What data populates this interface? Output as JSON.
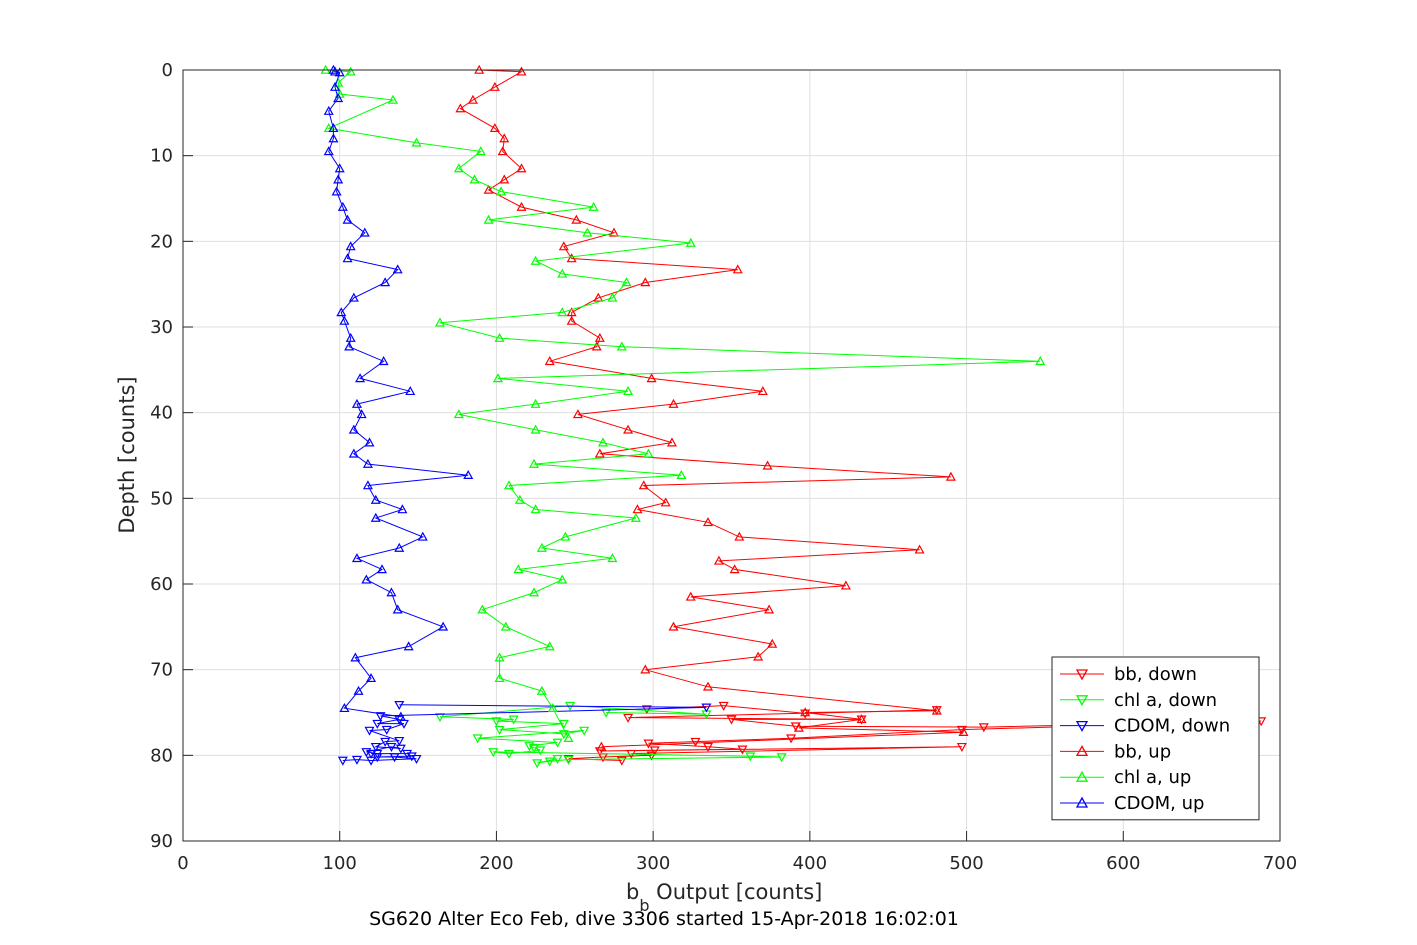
{
  "chart_data": {
    "type": "line",
    "title": "",
    "xlabel": "b",
    "xlabel_sub": "b",
    "xlabel_rest": " Output [counts]",
    "ylabel": "Depth [counts]",
    "caption": "SG620 Alter Eco Feb, dive 3306 started 15-Apr-2018 16:02:01",
    "xlim": [
      0,
      700
    ],
    "ylim": [
      0,
      90
    ],
    "y_reversed": true,
    "grid": true,
    "legend_position": "bottom-right",
    "xticks": [
      "0",
      "100",
      "200",
      "300",
      "400",
      "500",
      "600",
      "700"
    ],
    "yticks": [
      "0",
      "10",
      "20",
      "30",
      "40",
      "50",
      "60",
      "70",
      "80",
      "90"
    ],
    "series": [
      {
        "name": "bb, down",
        "color": "#ff0000",
        "marker": "triangle-down",
        "points": [
          [
            296,
            74.6
          ],
          [
            345,
            74.2
          ],
          [
            397,
            75.1
          ],
          [
            481,
            74.7
          ],
          [
            284,
            75.6
          ],
          [
            433,
            75.8
          ],
          [
            350,
            75.8
          ],
          [
            391,
            76.6
          ],
          [
            511,
            76.7
          ],
          [
            688,
            76
          ],
          [
            497,
            77
          ],
          [
            388,
            78
          ],
          [
            327,
            78.4
          ],
          [
            297,
            78.6
          ],
          [
            335,
            79
          ],
          [
            357,
            79.3
          ],
          [
            301,
            79.4
          ],
          [
            266,
            79.5
          ],
          [
            497,
            79
          ],
          [
            286,
            79.8
          ],
          [
            299,
            80
          ],
          [
            268,
            80.2
          ],
          [
            246,
            80.4
          ],
          [
            280,
            80.6
          ]
        ]
      },
      {
        "name": "chl a, down",
        "color": "#00ff00",
        "marker": "triangle-down",
        "points": [
          [
            270,
            75
          ],
          [
            334,
            75.2
          ],
          [
            247,
            74.2
          ],
          [
            164,
            75.5
          ],
          [
            211,
            75.8
          ],
          [
            200,
            76
          ],
          [
            243,
            76.3
          ],
          [
            202,
            77
          ],
          [
            243,
            77.5
          ],
          [
            256,
            77.1
          ],
          [
            188,
            78
          ],
          [
            239,
            78.5
          ],
          [
            221,
            78.9
          ],
          [
            224,
            79.1
          ],
          [
            228,
            79.4
          ],
          [
            208,
            79.8
          ],
          [
            198,
            79.6
          ],
          [
            362,
            80.1
          ],
          [
            382,
            80.2
          ],
          [
            246,
            80.5
          ],
          [
            234,
            80.7
          ],
          [
            226,
            80.9
          ],
          [
            239,
            80.4
          ]
        ]
      },
      {
        "name": "CDOM, down",
        "color": "#0000ff",
        "marker": "triangle-down",
        "points": [
          [
            138,
            74.1
          ],
          [
            334,
            74.4
          ],
          [
            126,
            75.4
          ],
          [
            138,
            75.8
          ],
          [
            124,
            76.3
          ],
          [
            141,
            76.3
          ],
          [
            130,
            77
          ],
          [
            119,
            77.1
          ],
          [
            138,
            78.3
          ],
          [
            129,
            78.4
          ],
          [
            123,
            79
          ],
          [
            139,
            79.2
          ],
          [
            133,
            79
          ],
          [
            117,
            79.6
          ],
          [
            124,
            79.8
          ],
          [
            120,
            79.8
          ],
          [
            143,
            79.8
          ],
          [
            146,
            80.1
          ],
          [
            124,
            80.2
          ],
          [
            135,
            80.2
          ],
          [
            149,
            80.4
          ],
          [
            120,
            80.6
          ],
          [
            111,
            80.5
          ],
          [
            102,
            80.6
          ]
        ]
      },
      {
        "name": "bb, up",
        "color": "#ff0000",
        "marker": "triangle-up",
        "points": [
          [
            189,
            0
          ],
          [
            216,
            0.2
          ],
          [
            199,
            2
          ],
          [
            185,
            3.5
          ],
          [
            177,
            4.5
          ],
          [
            199,
            6.8
          ],
          [
            205,
            8
          ],
          [
            204,
            9.5
          ],
          [
            216,
            11.5
          ],
          [
            205,
            12.8
          ],
          [
            195,
            14
          ],
          [
            216,
            16
          ],
          [
            251,
            17.5
          ],
          [
            275,
            19
          ],
          [
            243,
            20.6
          ],
          [
            248,
            22
          ],
          [
            354,
            23.3
          ],
          [
            295,
            24.8
          ],
          [
            265,
            26.6
          ],
          [
            248,
            28.3
          ],
          [
            248,
            29.3
          ],
          [
            266,
            31.3
          ],
          [
            264,
            32.3
          ],
          [
            234,
            34
          ],
          [
            299,
            36
          ],
          [
            370,
            37.5
          ],
          [
            313,
            39
          ],
          [
            252,
            40.2
          ],
          [
            284,
            42
          ],
          [
            312,
            43.5
          ],
          [
            266,
            44.8
          ],
          [
            373,
            46.2
          ],
          [
            490,
            47.5
          ],
          [
            294,
            48.5
          ],
          [
            308,
            50.5
          ],
          [
            290,
            51.3
          ],
          [
            335,
            52.8
          ],
          [
            355,
            54.5
          ],
          [
            470,
            56
          ],
          [
            342,
            57.3
          ],
          [
            352,
            58.3
          ],
          [
            423,
            60.2
          ],
          [
            324,
            61.5
          ],
          [
            374,
            63
          ],
          [
            313,
            65
          ],
          [
            376,
            67
          ],
          [
            367,
            68.5
          ],
          [
            295,
            70
          ],
          [
            335,
            72
          ],
          [
            481,
            74.8
          ],
          [
            397,
            75
          ],
          [
            433,
            75.8
          ],
          [
            393,
            76.8
          ],
          [
            498,
            77.3
          ],
          [
            267,
            79
          ]
        ]
      },
      {
        "name": "chl a, up",
        "color": "#00ff00",
        "marker": "triangle-up",
        "points": [
          [
            91,
            0
          ],
          [
            107,
            0.2
          ],
          [
            99,
            1.5
          ],
          [
            100,
            2.8
          ],
          [
            134,
            3.5
          ],
          [
            93,
            6.8
          ],
          [
            149,
            8.5
          ],
          [
            190,
            9.5
          ],
          [
            176,
            11.5
          ],
          [
            186,
            12.8
          ],
          [
            203,
            14.2
          ],
          [
            262,
            16
          ],
          [
            195,
            17.5
          ],
          [
            258,
            19
          ],
          [
            324,
            20.2
          ],
          [
            225,
            22.3
          ],
          [
            242,
            23.8
          ],
          [
            283,
            24.8
          ],
          [
            274,
            26.6
          ],
          [
            242,
            28.3
          ],
          [
            164,
            29.5
          ],
          [
            202,
            31.3
          ],
          [
            280,
            32.3
          ],
          [
            547,
            34
          ],
          [
            201,
            36
          ],
          [
            284,
            37.5
          ],
          [
            225,
            39
          ],
          [
            176,
            40.2
          ],
          [
            225,
            42
          ],
          [
            268,
            43.5
          ],
          [
            297,
            44.8
          ],
          [
            224,
            46
          ],
          [
            318,
            47.3
          ],
          [
            208,
            48.5
          ],
          [
            215,
            50.2
          ],
          [
            225,
            51.3
          ],
          [
            289,
            52.3
          ],
          [
            244,
            54.5
          ],
          [
            229,
            55.8
          ],
          [
            274,
            57
          ],
          [
            214,
            58.3
          ],
          [
            242,
            59.5
          ],
          [
            224,
            61
          ],
          [
            191,
            63
          ],
          [
            206,
            65
          ],
          [
            234,
            67.3
          ],
          [
            202,
            68.6
          ],
          [
            202,
            71
          ],
          [
            229,
            72.5
          ],
          [
            236,
            74.5
          ],
          [
            246,
            78
          ]
        ]
      },
      {
        "name": "CDOM, up",
        "color": "#0000ff",
        "marker": "triangle-up",
        "points": [
          [
            96,
            0
          ],
          [
            97,
            0.2
          ],
          [
            100,
            0.3
          ],
          [
            97,
            2
          ],
          [
            99,
            3.3
          ],
          [
            93,
            4.8
          ],
          [
            96,
            6.8
          ],
          [
            96,
            8
          ],
          [
            93,
            9.5
          ],
          [
            100,
            11.5
          ],
          [
            99,
            12.8
          ],
          [
            98,
            14.2
          ],
          [
            102,
            16
          ],
          [
            105,
            17.5
          ],
          [
            116,
            19
          ],
          [
            107,
            20.6
          ],
          [
            105,
            22
          ],
          [
            137,
            23.3
          ],
          [
            129,
            24.8
          ],
          [
            109,
            26.6
          ],
          [
            101,
            28.3
          ],
          [
            103,
            29.3
          ],
          [
            107,
            31.3
          ],
          [
            106,
            32.3
          ],
          [
            128,
            34
          ],
          [
            113,
            36
          ],
          [
            145,
            37.5
          ],
          [
            111,
            39
          ],
          [
            114,
            40.2
          ],
          [
            109,
            42
          ],
          [
            119,
            43.5
          ],
          [
            109,
            44.8
          ],
          [
            118,
            46
          ],
          [
            182,
            47.3
          ],
          [
            118,
            48.5
          ],
          [
            123,
            50.2
          ],
          [
            140,
            51.3
          ],
          [
            123,
            52.3
          ],
          [
            153,
            54.5
          ],
          [
            138,
            55.8
          ],
          [
            111,
            57
          ],
          [
            127,
            58.3
          ],
          [
            117,
            59.5
          ],
          [
            133,
            61
          ],
          [
            137,
            63
          ],
          [
            166,
            65
          ],
          [
            144,
            67.3
          ],
          [
            110,
            68.6
          ],
          [
            120,
            71
          ],
          [
            112,
            72.5
          ],
          [
            103,
            74.5
          ],
          [
            139,
            75.5
          ]
        ]
      }
    ]
  }
}
